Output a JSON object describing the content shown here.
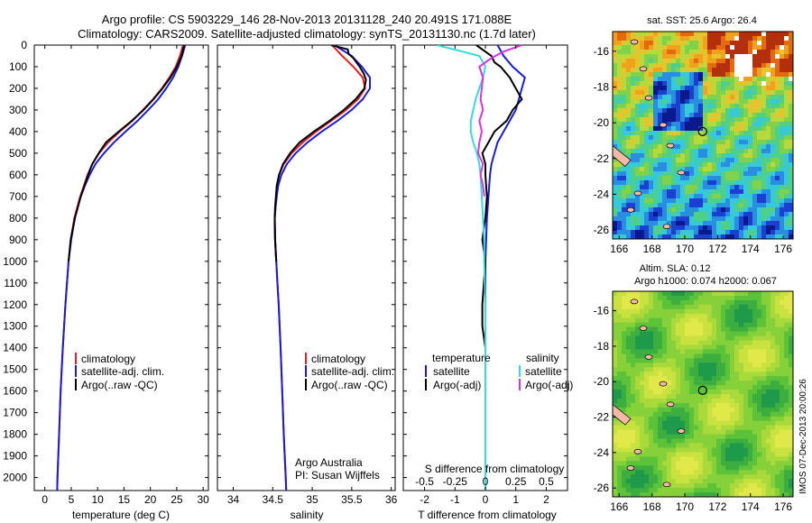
{
  "header": {
    "line1": "Argo profile: CS 5903229_146 28-Nov-2013 20131128_240 20.491S 171.088E",
    "line2": "Climatology: CARS2009. Satellite-adjusted climatology: synTS_20131130.nc (1.7d later)"
  },
  "depth_ticks": [
    0,
    100,
    200,
    300,
    400,
    500,
    600,
    700,
    800,
    900,
    1000,
    1100,
    1200,
    1300,
    1400,
    1500,
    1600,
    1700,
    1800,
    1900,
    2000
  ],
  "colors": {
    "clim": "#e0211d",
    "sat": "#1a1adb",
    "argo": "#000000",
    "sat_sal": "#33dddd",
    "argo_sal": "#dd33dd"
  },
  "panels": {
    "temperature": {
      "xlabel": "temperature (deg C)",
      "xticks": [
        "0",
        "5",
        "10",
        "15",
        "20",
        "25",
        "30"
      ],
      "legend": [
        "climatology",
        "satellite-adj. clim.",
        "Argo(..raw -QC)"
      ]
    },
    "salinity": {
      "xlabel": "salinity",
      "xticks": [
        "34",
        "34.5",
        "35",
        "35.5",
        "36"
      ],
      "legend": [
        "climatology",
        "satellite-adj. clim.",
        "Argo(..raw -QC)"
      ],
      "credit1": "Argo Australia",
      "credit2": "PI: Susan Wijffels"
    },
    "difference": {
      "xlabel_top": "S difference from climatology",
      "xlabel_bottom": "T difference from climatology",
      "sticks": [
        "-0.5",
        "-0.25",
        "0",
        "0.25",
        "0.5"
      ],
      "tticks": [
        "-2",
        "-1",
        "0",
        "1",
        "2"
      ],
      "legend_t_title": "temperature",
      "legend_s_title": "salinity",
      "legend_t": [
        "satellite",
        "Argo(-adj)"
      ],
      "legend_s": [
        "satellite",
        "Argo(-adj)"
      ]
    }
  },
  "maps": {
    "sst_title": "sat. SST: 25.6  Argo: 26.4",
    "sla_title1": "Altim. SLA: 0.12",
    "sla_title2": "Argo h1000: 0.074 h2000: 0.067",
    "lat_ticks": [
      "-16",
      "-18",
      "-20",
      "-22",
      "-24",
      "-26"
    ],
    "lon_ticks": [
      "166",
      "168",
      "170",
      "172",
      "174",
      "176"
    ],
    "side_label": "IMOS 07-Dec-2013 20:00:26"
  },
  "chart_data": [
    {
      "type": "line",
      "xlabel": "temperature (deg C)",
      "ylabel": "",
      "xlim": [
        -2,
        31
      ],
      "ylim": [
        2060,
        0
      ],
      "series": [
        {
          "name": "climatology",
          "depth": [
            0,
            50,
            100,
            150,
            200,
            250,
            300,
            350,
            400,
            450,
            500,
            550,
            600,
            650,
            700,
            800,
            900,
            1000,
            1200,
            1400,
            1600,
            1800,
            2000,
            2060
          ],
          "values": [
            26.2,
            25.6,
            24.8,
            23.6,
            22.2,
            20.5,
            18.6,
            16.6,
            14.2,
            12.0,
            10.3,
            9.0,
            8.1,
            7.4,
            6.7,
            5.6,
            4.9,
            4.5,
            3.9,
            3.4,
            3.0,
            2.7,
            2.4,
            2.35
          ]
        },
        {
          "name": "satellite-adj. clim.",
          "depth": [
            0,
            50,
            100,
            150,
            200,
            250,
            300,
            350,
            400,
            450,
            500,
            550,
            600,
            650,
            700,
            800,
            900,
            1000,
            1200,
            1400,
            1600,
            1800,
            2000,
            2060
          ],
          "values": [
            26.6,
            26.0,
            25.3,
            24.3,
            23.0,
            21.5,
            19.6,
            17.6,
            15.3,
            13.1,
            11.2,
            9.6,
            8.5,
            7.6,
            6.8,
            5.7,
            5.0,
            4.5,
            3.9,
            3.4,
            3.0,
            2.7,
            2.4,
            2.35
          ]
        },
        {
          "name": "Argo(..raw -QC)",
          "depth": [
            0,
            50,
            100,
            150,
            200,
            250,
            300,
            350,
            400,
            450,
            500,
            550,
            600,
            650,
            700,
            800,
            900,
            1000
          ],
          "values": [
            26.4,
            25.9,
            25.0,
            23.8,
            22.3,
            20.6,
            18.7,
            16.5,
            14.0,
            11.6,
            10.2,
            9.0,
            8.2,
            7.5,
            6.8,
            5.7,
            4.9,
            4.5
          ]
        }
      ]
    },
    {
      "type": "line",
      "xlabel": "salinity",
      "ylabel": "",
      "xlim": [
        33.8,
        36.05
      ],
      "ylim": [
        2060,
        0
      ],
      "series": [
        {
          "name": "climatology",
          "depth": [
            0,
            50,
            100,
            150,
            200,
            250,
            300,
            350,
            400,
            450,
            500,
            550,
            600,
            650,
            700,
            750,
            800,
            900,
            1000,
            1100,
            1200,
            1400,
            1600,
            1800,
            2000,
            2060
          ],
          "values": [
            35.25,
            35.38,
            35.52,
            35.64,
            35.67,
            35.58,
            35.43,
            35.24,
            35.05,
            34.88,
            34.74,
            34.64,
            34.58,
            34.56,
            34.55,
            34.535,
            34.525,
            34.53,
            34.545,
            34.56,
            34.575,
            34.6,
            34.62,
            34.64,
            34.665,
            34.67
          ]
        },
        {
          "name": "satellite-adj. clim.",
          "depth": [
            0,
            50,
            100,
            150,
            200,
            250,
            300,
            350,
            400,
            450,
            500,
            550,
            600,
            650,
            700,
            750,
            800,
            900,
            1000,
            1100,
            1200,
            1400,
            1600,
            1800,
            2000,
            2060
          ],
          "values": [
            35.28,
            35.5,
            35.63,
            35.73,
            35.73,
            35.64,
            35.5,
            35.32,
            35.12,
            34.94,
            34.79,
            34.68,
            34.61,
            34.57,
            34.55,
            34.535,
            34.525,
            34.53,
            34.545,
            34.56,
            34.575,
            34.6,
            34.62,
            34.64,
            34.665,
            34.67
          ]
        },
        {
          "name": "Argo(..raw -QC)",
          "depth": [
            0,
            20,
            40,
            60,
            80,
            100,
            130,
            160,
            200,
            250,
            300,
            350,
            400,
            450,
            500,
            550,
            600,
            650,
            700,
            750,
            800,
            900,
            1000
          ],
          "values": [
            35.24,
            35.45,
            35.46,
            35.52,
            35.56,
            35.6,
            35.65,
            35.68,
            35.66,
            35.55,
            35.4,
            35.22,
            35.02,
            34.84,
            34.72,
            34.63,
            34.58,
            34.55,
            34.54,
            34.53,
            34.525,
            34.53,
            34.545
          ]
        }
      ]
    },
    {
      "type": "line",
      "xlabel": "T difference from climatology",
      "x2label": "S difference from climatology",
      "xlim": [
        -2.7,
        2.7
      ],
      "ylim": [
        2060,
        0
      ],
      "series": [
        {
          "name": "satellite (temperature)",
          "depth": [
            0,
            50,
            100,
            150,
            200,
            250,
            300,
            350,
            400,
            450,
            500,
            550,
            600,
            700,
            800,
            1000,
            1200,
            1400,
            1600,
            1800,
            2000,
            2060
          ],
          "values": [
            0.4,
            0.6,
            0.9,
            1.3,
            1.2,
            1.1,
            1.0,
            0.8,
            0.6,
            0.4,
            0.3,
            0.2,
            0.15,
            0.1,
            0.05,
            0.0,
            0.0,
            0.0,
            0.0,
            0.0,
            0.0,
            0.0
          ]
        },
        {
          "name": "Argo(-adj) (temperature)",
          "depth": [
            0,
            50,
            80,
            100,
            150,
            200,
            250,
            300,
            350,
            400,
            450,
            500,
            550,
            600,
            700,
            800,
            900,
            1000,
            1100,
            1200,
            1300,
            1400
          ],
          "values": [
            -0.3,
            0.2,
            0.3,
            0.5,
            0.8,
            1.0,
            1.2,
            0.9,
            0.7,
            0.3,
            0.1,
            -0.1,
            0.0,
            0.0,
            0.05,
            0.0,
            -0.1,
            0.0,
            -0.05,
            -0.1,
            -0.1,
            0.0
          ]
        },
        {
          "name": "satellite (salinity)",
          "depth": [
            0,
            50,
            100,
            150,
            200,
            250,
            300,
            350,
            400,
            450,
            500,
            550,
            600,
            700,
            800,
            900,
            1000,
            1200,
            1400,
            1600,
            1800,
            2000,
            2060
          ],
          "values": [
            -0.4,
            -0.05,
            0.0,
            -0.02,
            -0.05,
            -0.08,
            -0.1,
            -0.12,
            -0.12,
            -0.1,
            -0.07,
            -0.05,
            -0.04,
            -0.03,
            -0.02,
            -0.01,
            -0.01,
            0.0,
            0.0,
            0.0,
            0.0,
            0.0,
            0.0
          ]
        },
        {
          "name": "Argo(-adj) (salinity)",
          "depth": [
            0,
            30,
            60,
            100,
            150,
            200,
            250,
            300,
            350,
            400,
            450,
            500,
            550,
            600,
            650,
            700
          ],
          "values": [
            0.3,
            0.15,
            0.05,
            -0.05,
            -0.02,
            -0.03,
            -0.04,
            -0.02,
            -0.05,
            -0.03,
            -0.05,
            -0.06,
            -0.02,
            -0.04,
            -0.02,
            -0.01
          ]
        }
      ]
    }
  ]
}
